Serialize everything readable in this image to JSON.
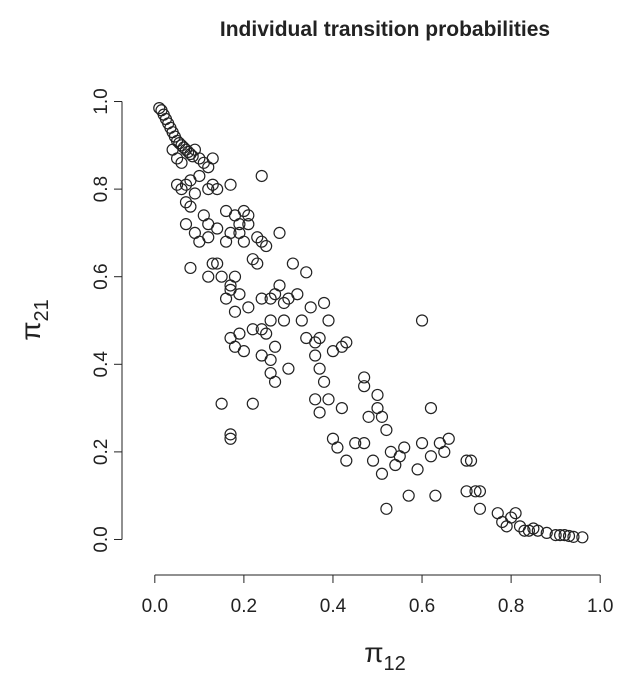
{
  "chart_data": {
    "type": "scatter",
    "title": "Individual transition probabilities",
    "xlabel": {
      "text": "π",
      "subscript": "12"
    },
    "ylabel": {
      "text": "π",
      "subscript": "21"
    },
    "xlim": [
      -0.04,
      1.04
    ],
    "ylim": [
      -0.04,
      1.04
    ],
    "xticks": [
      {
        "value": 0,
        "label": "0.0"
      },
      0.2,
      0.4,
      0.6,
      0.8,
      {
        "value": 1,
        "label": "1.0"
      }
    ],
    "yticks": [
      {
        "value": 0,
        "label": "0.0"
      },
      0.2,
      0.4,
      0.6,
      0.8,
      {
        "value": 1,
        "label": "1.0"
      }
    ],
    "color": "#222222",
    "x": [
      0.01,
      0.015,
      0.02,
      0.025,
      0.03,
      0.035,
      0.04,
      0.045,
      0.05,
      0.055,
      0.06,
      0.065,
      0.07,
      0.075,
      0.08,
      0.085,
      0.04,
      0.05,
      0.06,
      0.09,
      0.1,
      0.11,
      0.13,
      0.12,
      0.1,
      0.08,
      0.07,
      0.06,
      0.05,
      0.12,
      0.13,
      0.14,
      0.09,
      0.07,
      0.08,
      0.11,
      0.12,
      0.14,
      0.07,
      0.09,
      0.1,
      0.12,
      0.08,
      0.13,
      0.14,
      0.15,
      0.12,
      0.17,
      0.16,
      0.18,
      0.2,
      0.21,
      0.19,
      0.17,
      0.16,
      0.19,
      0.2,
      0.21,
      0.24,
      0.23,
      0.24,
      0.25,
      0.22,
      0.23,
      0.28,
      0.18,
      0.17,
      0.19,
      0.16,
      0.18,
      0.17,
      0.21,
      0.24,
      0.26,
      0.27,
      0.28,
      0.29,
      0.3,
      0.31,
      0.34,
      0.32,
      0.35,
      0.33,
      0.29,
      0.26,
      0.24,
      0.25,
      0.22,
      0.19,
      0.17,
      0.18,
      0.2,
      0.24,
      0.26,
      0.27,
      0.26,
      0.27,
      0.3,
      0.34,
      0.36,
      0.37,
      0.38,
      0.39,
      0.4,
      0.42,
      0.43,
      0.36,
      0.37,
      0.38,
      0.36,
      0.37,
      0.39,
      0.4,
      0.41,
      0.42,
      0.43,
      0.45,
      0.47,
      0.47,
      0.48,
      0.5,
      0.5,
      0.51,
      0.52,
      0.53,
      0.54,
      0.47,
      0.49,
      0.51,
      0.52,
      0.55,
      0.56,
      0.57,
      0.59,
      0.6,
      0.6,
      0.62,
      0.62,
      0.63,
      0.64,
      0.66,
      0.65,
      0.7,
      0.71,
      0.7,
      0.72,
      0.73,
      0.73,
      0.77,
      0.78,
      0.79,
      0.8,
      0.81,
      0.82,
      0.83,
      0.84,
      0.85,
      0.86,
      0.88,
      0.9,
      0.91,
      0.92,
      0.93,
      0.94,
      0.96,
      0.15,
      0.17,
      0.17,
      0.22
    ],
    "values": [
      0.985,
      0.98,
      0.97,
      0.96,
      0.95,
      0.94,
      0.93,
      0.92,
      0.91,
      0.905,
      0.9,
      0.895,
      0.89,
      0.885,
      0.88,
      0.875,
      0.89,
      0.87,
      0.86,
      0.89,
      0.87,
      0.86,
      0.87,
      0.85,
      0.83,
      0.82,
      0.81,
      0.8,
      0.81,
      0.8,
      0.81,
      0.8,
      0.79,
      0.77,
      0.76,
      0.74,
      0.72,
      0.71,
      0.72,
      0.7,
      0.68,
      0.69,
      0.62,
      0.63,
      0.63,
      0.6,
      0.6,
      0.81,
      0.75,
      0.74,
      0.75,
      0.74,
      0.72,
      0.7,
      0.68,
      0.7,
      0.68,
      0.72,
      0.83,
      0.69,
      0.68,
      0.67,
      0.64,
      0.63,
      0.7,
      0.6,
      0.58,
      0.56,
      0.55,
      0.52,
      0.57,
      0.53,
      0.55,
      0.55,
      0.56,
      0.58,
      0.54,
      0.55,
      0.63,
      0.61,
      0.56,
      0.53,
      0.5,
      0.5,
      0.5,
      0.48,
      0.47,
      0.48,
      0.47,
      0.46,
      0.44,
      0.43,
      0.42,
      0.41,
      0.44,
      0.38,
      0.36,
      0.39,
      0.46,
      0.45,
      0.46,
      0.54,
      0.5,
      0.43,
      0.44,
      0.45,
      0.42,
      0.39,
      0.36,
      0.32,
      0.29,
      0.32,
      0.23,
      0.21,
      0.3,
      0.18,
      0.22,
      0.37,
      0.35,
      0.28,
      0.33,
      0.3,
      0.28,
      0.25,
      0.2,
      0.17,
      0.22,
      0.18,
      0.15,
      0.07,
      0.19,
      0.21,
      0.1,
      0.16,
      0.5,
      0.22,
      0.3,
      0.19,
      0.1,
      0.22,
      0.23,
      0.2,
      0.18,
      0.18,
      0.11,
      0.11,
      0.11,
      0.07,
      0.06,
      0.04,
      0.03,
      0.05,
      0.06,
      0.03,
      0.02,
      0.02,
      0.025,
      0.02,
      0.015,
      0.01,
      0.01,
      0.01,
      0.008,
      0.006,
      0.005,
      0.31,
      0.24,
      0.23,
      0.31
    ]
  }
}
